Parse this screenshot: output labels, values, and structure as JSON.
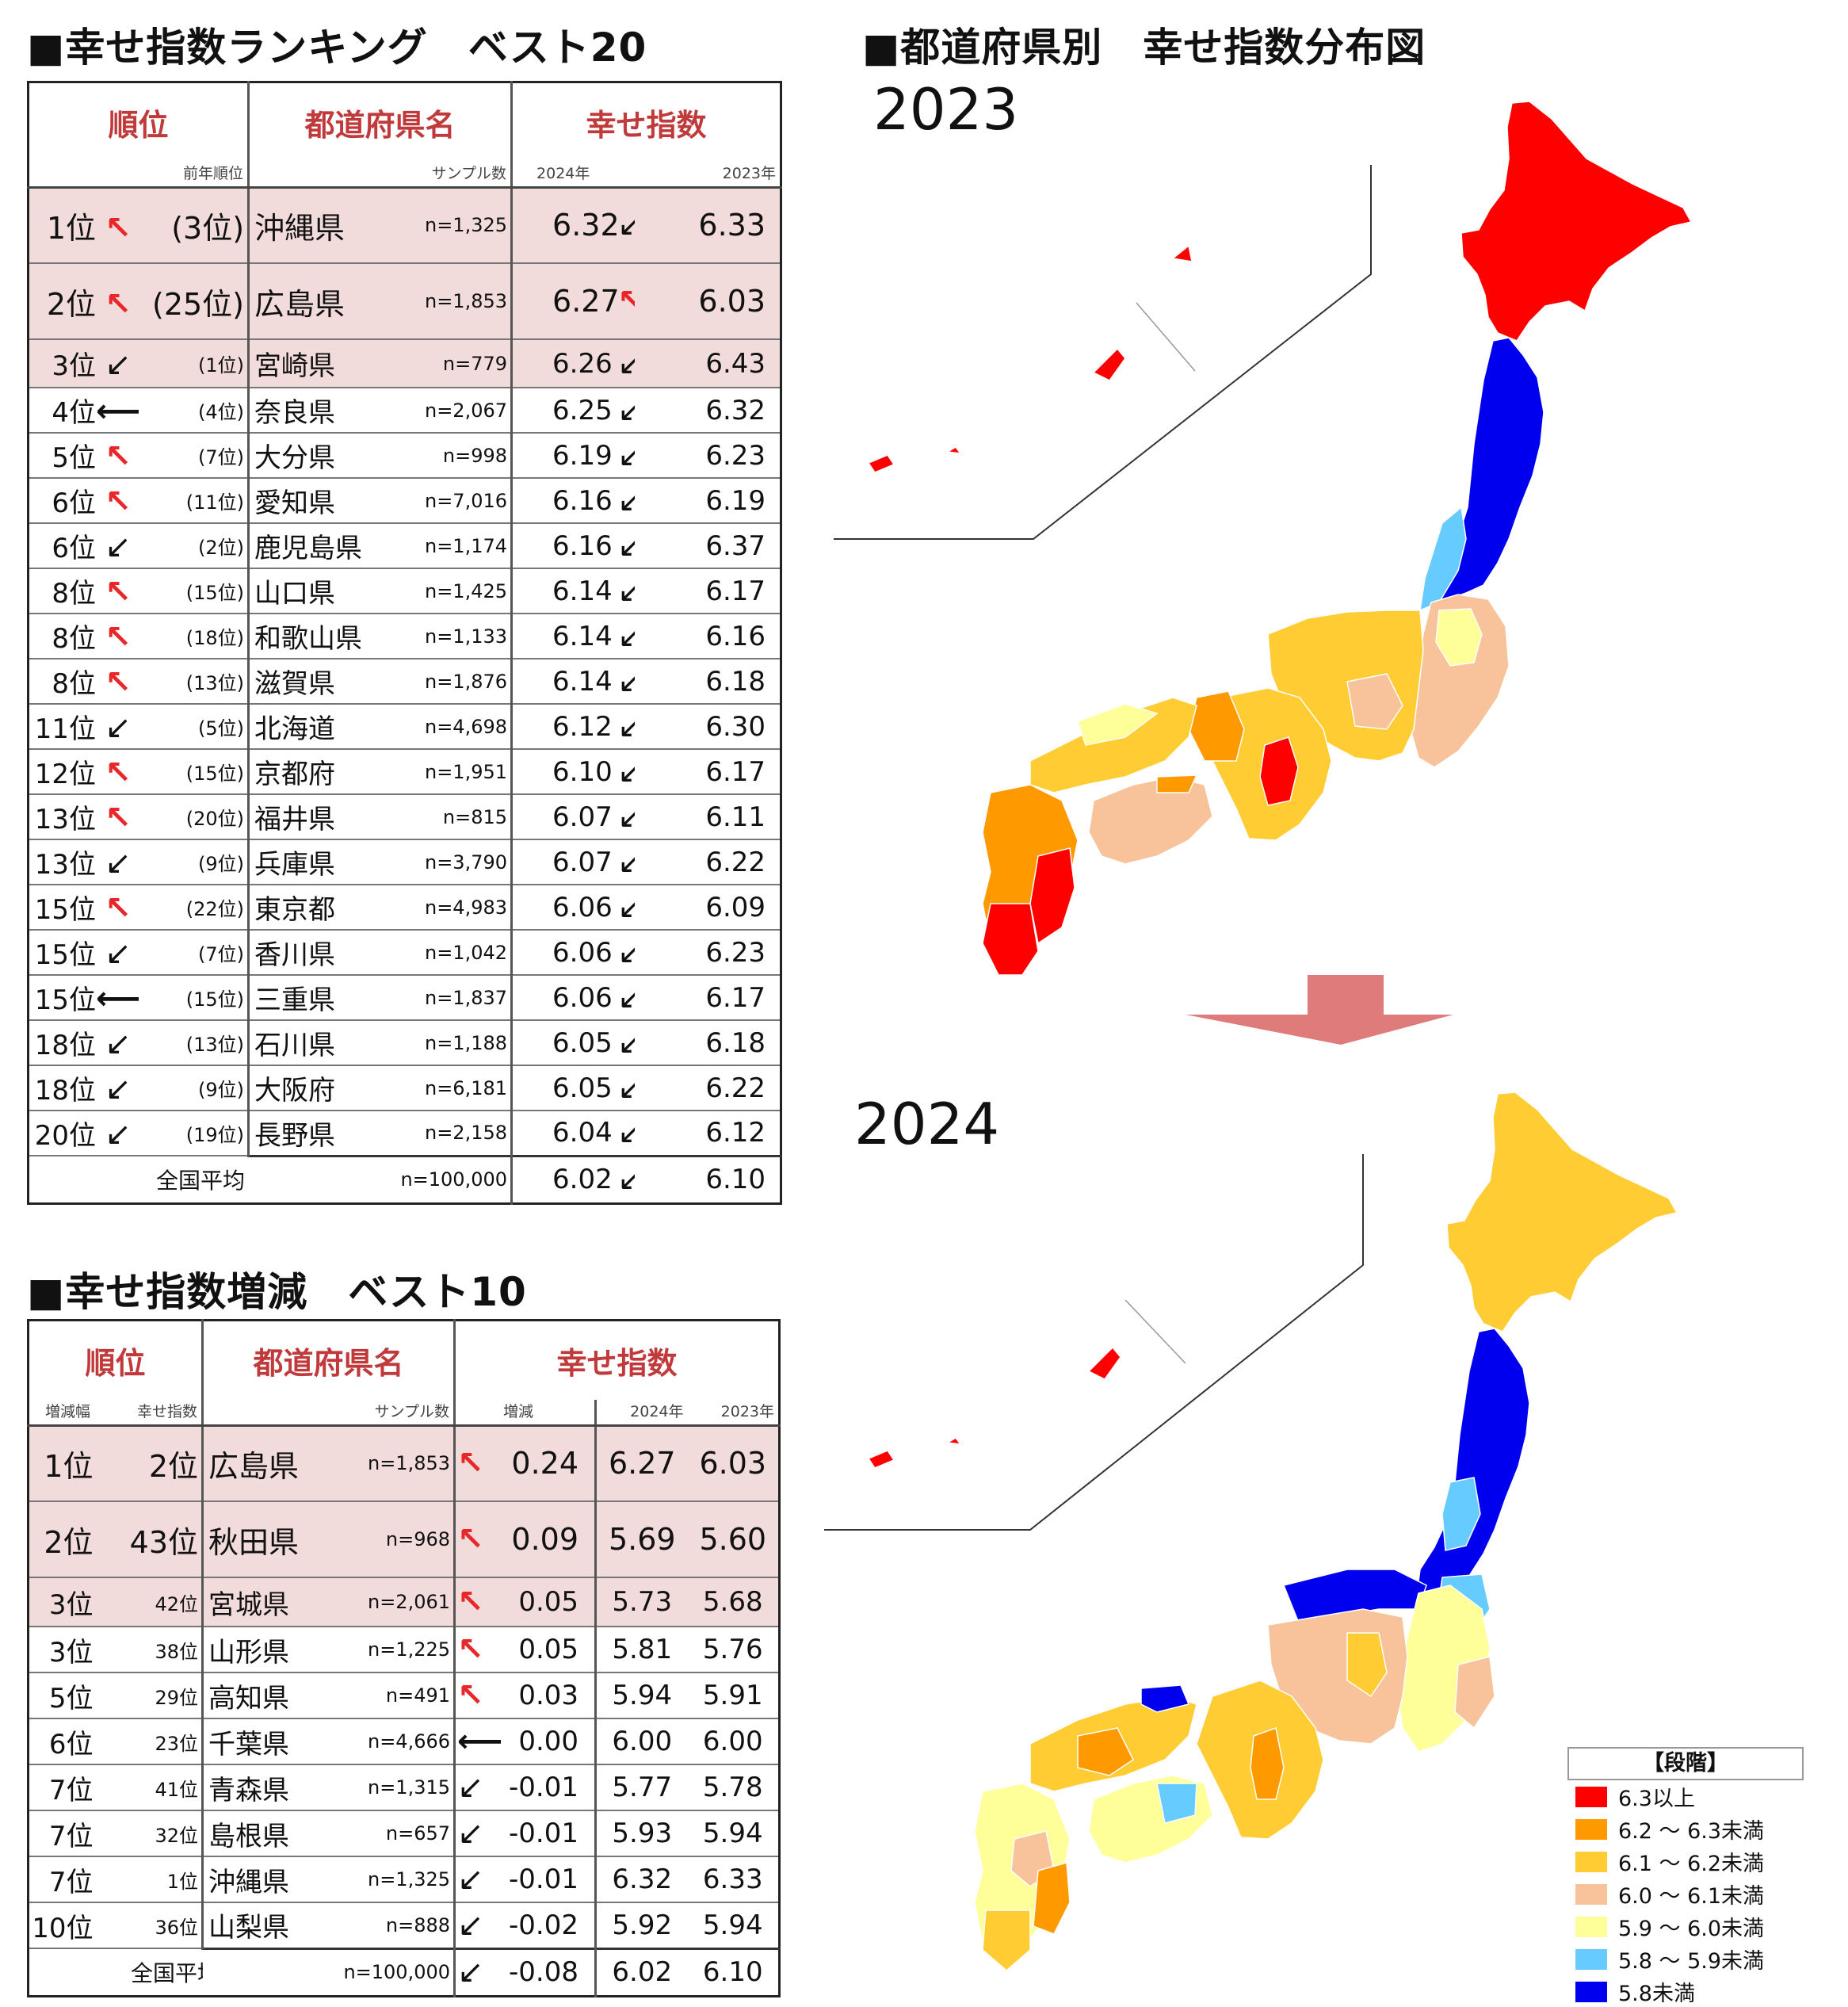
{
  "ranking": {
    "title": "■幸せ指数ランキング　ベスト20",
    "headers": {
      "rank": "順位",
      "prefecture": "都道府県名",
      "score": "幸せ指数",
      "prev_rank": "前年順位",
      "sample": "サンプル数",
      "y2024": "2024年",
      "y2023": "2023年"
    },
    "rows": [
      {
        "rank": "1位",
        "trend": "up",
        "prev": "(3位)",
        "pref": "沖縄県",
        "n": "n=1,325",
        "s2024": "6.32",
        "change": "down",
        "s2023": "6.33",
        "highlight": true,
        "large": true
      },
      {
        "rank": "2位",
        "trend": "up",
        "prev": "(25位)",
        "pref": "広島県",
        "n": "n=1,853",
        "s2024": "6.27",
        "change": "up",
        "s2023": "6.03",
        "highlight": true,
        "large": true
      },
      {
        "rank": "3位",
        "trend": "down",
        "prev": "(1位)",
        "pref": "宮崎県",
        "n": "n=779",
        "s2024": "6.26",
        "change": "down",
        "s2023": "6.43",
        "highlight": true,
        "large": false
      },
      {
        "rank": "4位",
        "trend": "same",
        "prev": "(4位)",
        "pref": "奈良県",
        "n": "n=2,067",
        "s2024": "6.25",
        "change": "down",
        "s2023": "6.32"
      },
      {
        "rank": "5位",
        "trend": "up",
        "prev": "(7位)",
        "pref": "大分県",
        "n": "n=998",
        "s2024": "6.19",
        "change": "down",
        "s2023": "6.23"
      },
      {
        "rank": "6位",
        "trend": "up",
        "prev": "(11位)",
        "pref": "愛知県",
        "n": "n=7,016",
        "s2024": "6.16",
        "change": "down",
        "s2023": "6.19"
      },
      {
        "rank": "6位",
        "trend": "down",
        "prev": "(2位)",
        "pref": "鹿児島県",
        "n": "n=1,174",
        "s2024": "6.16",
        "change": "down",
        "s2023": "6.37"
      },
      {
        "rank": "8位",
        "trend": "up",
        "prev": "(15位)",
        "pref": "山口県",
        "n": "n=1,425",
        "s2024": "6.14",
        "change": "down",
        "s2023": "6.17"
      },
      {
        "rank": "8位",
        "trend": "up",
        "prev": "(18位)",
        "pref": "和歌山県",
        "n": "n=1,133",
        "s2024": "6.14",
        "change": "down",
        "s2023": "6.16"
      },
      {
        "rank": "8位",
        "trend": "up",
        "prev": "(13位)",
        "pref": "滋賀県",
        "n": "n=1,876",
        "s2024": "6.14",
        "change": "down",
        "s2023": "6.18"
      },
      {
        "rank": "11位",
        "trend": "down",
        "prev": "(5位)",
        "pref": "北海道",
        "n": "n=4,698",
        "s2024": "6.12",
        "change": "down",
        "s2023": "6.30"
      },
      {
        "rank": "12位",
        "trend": "up",
        "prev": "(15位)",
        "pref": "京都府",
        "n": "n=1,951",
        "s2024": "6.10",
        "change": "down",
        "s2023": "6.17"
      },
      {
        "rank": "13位",
        "trend": "up",
        "prev": "(20位)",
        "pref": "福井県",
        "n": "n=815",
        "s2024": "6.07",
        "change": "down",
        "s2023": "6.11"
      },
      {
        "rank": "13位",
        "trend": "down",
        "prev": "(9位)",
        "pref": "兵庫県",
        "n": "n=3,790",
        "s2024": "6.07",
        "change": "down",
        "s2023": "6.22"
      },
      {
        "rank": "15位",
        "trend": "up",
        "prev": "(22位)",
        "pref": "東京都",
        "n": "n=4,983",
        "s2024": "6.06",
        "change": "down",
        "s2023": "6.09"
      },
      {
        "rank": "15位",
        "trend": "down",
        "prev": "(7位)",
        "pref": "香川県",
        "n": "n=1,042",
        "s2024": "6.06",
        "change": "down",
        "s2023": "6.23"
      },
      {
        "rank": "15位",
        "trend": "same",
        "prev": "(15位)",
        "pref": "三重県",
        "n": "n=1,837",
        "s2024": "6.06",
        "change": "down",
        "s2023": "6.17"
      },
      {
        "rank": "18位",
        "trend": "down",
        "prev": "(13位)",
        "pref": "石川県",
        "n": "n=1,188",
        "s2024": "6.05",
        "change": "down",
        "s2023": "6.18"
      },
      {
        "rank": "18位",
        "trend": "down",
        "prev": "(9位)",
        "pref": "大阪府",
        "n": "n=6,181",
        "s2024": "6.05",
        "change": "down",
        "s2023": "6.22"
      },
      {
        "rank": "20位",
        "trend": "down",
        "prev": "(19位)",
        "pref": "長野県",
        "n": "n=2,158",
        "s2024": "6.04",
        "change": "down",
        "s2023": "6.12"
      }
    ],
    "average": {
      "label": "全国平均",
      "n": "n=100,000",
      "s2024": "6.02",
      "change": "down",
      "s2023": "6.10"
    }
  },
  "change_ranking": {
    "title": "■幸せ指数増減　ベスト10",
    "headers": {
      "rank": "順位",
      "prefecture": "都道府県名",
      "score": "幸せ指数",
      "delta_rank": "増減幅",
      "score_rank": "幸せ指数",
      "sample": "サンプル数",
      "delta": "増減",
      "y2024": "2024年",
      "y2023": "2023年"
    },
    "rows": [
      {
        "rank": "1位",
        "score_rank": "2位",
        "pref": "広島県",
        "n": "n=1,853",
        "dir": "up",
        "delta": "0.24",
        "s2024": "6.27",
        "s2023": "6.03",
        "highlight": true,
        "large": true
      },
      {
        "rank": "2位",
        "score_rank": "43位",
        "pref": "秋田県",
        "n": "n=968",
        "dir": "up",
        "delta": "0.09",
        "s2024": "5.69",
        "s2023": "5.60",
        "highlight": true,
        "large": true
      },
      {
        "rank": "3位",
        "score_rank": "42位",
        "pref": "宮城県",
        "n": "n=2,061",
        "dir": "up",
        "delta": "0.05",
        "s2024": "5.73",
        "s2023": "5.68",
        "highlight": true,
        "large": false
      },
      {
        "rank": "3位",
        "score_rank": "38位",
        "pref": "山形県",
        "n": "n=1,225",
        "dir": "up",
        "delta": "0.05",
        "s2024": "5.81",
        "s2023": "5.76"
      },
      {
        "rank": "5位",
        "score_rank": "29位",
        "pref": "高知県",
        "n": "n=491",
        "dir": "up",
        "delta": "0.03",
        "s2024": "5.94",
        "s2023": "5.91"
      },
      {
        "rank": "6位",
        "score_rank": "23位",
        "pref": "千葉県",
        "n": "n=4,666",
        "dir": "same",
        "delta": "0.00",
        "s2024": "6.00",
        "s2023": "6.00"
      },
      {
        "rank": "7位",
        "score_rank": "41位",
        "pref": "青森県",
        "n": "n=1,315",
        "dir": "down",
        "delta": "-0.01",
        "s2024": "5.77",
        "s2023": "5.78"
      },
      {
        "rank": "7位",
        "score_rank": "32位",
        "pref": "島根県",
        "n": "n=657",
        "dir": "down",
        "delta": "-0.01",
        "s2024": "5.93",
        "s2023": "5.94"
      },
      {
        "rank": "7位",
        "score_rank": "1位",
        "pref": "沖縄県",
        "n": "n=1,325",
        "dir": "down",
        "delta": "-0.01",
        "s2024": "6.32",
        "s2023": "6.33"
      },
      {
        "rank": "10位",
        "score_rank": "36位",
        "pref": "山梨県",
        "n": "n=888",
        "dir": "down",
        "delta": "-0.02",
        "s2024": "5.92",
        "s2023": "5.94"
      }
    ],
    "average": {
      "label": "全国平均",
      "n": "n=100,000",
      "dir": "down",
      "delta": "-0.08",
      "s2024": "6.02",
      "s2023": "6.10"
    }
  },
  "map": {
    "title": "■都道府県別　幸せ指数分布図",
    "year_top": "2023",
    "year_bottom": "2024",
    "legend_title": "【段階】",
    "legend": [
      {
        "label": "6.3以上",
        "color": "#ff0000"
      },
      {
        "label": "6.2 ～ 6.3未満",
        "color": "#ff9900"
      },
      {
        "label": "6.1 ～ 6.2未満",
        "color": "#ffcc33"
      },
      {
        "label": "6.0 ～ 6.1未満",
        "color": "#f8c39a"
      },
      {
        "label": "5.9 ～ 6.0未満",
        "color": "#ffff99"
      },
      {
        "label": "5.8 ～ 5.9未満",
        "color": "#66ccff"
      },
      {
        "label": "5.8未満",
        "color": "#0000ee"
      }
    ]
  },
  "symbols": {
    "up": "↖",
    "down": "↙",
    "same": "⟵"
  }
}
